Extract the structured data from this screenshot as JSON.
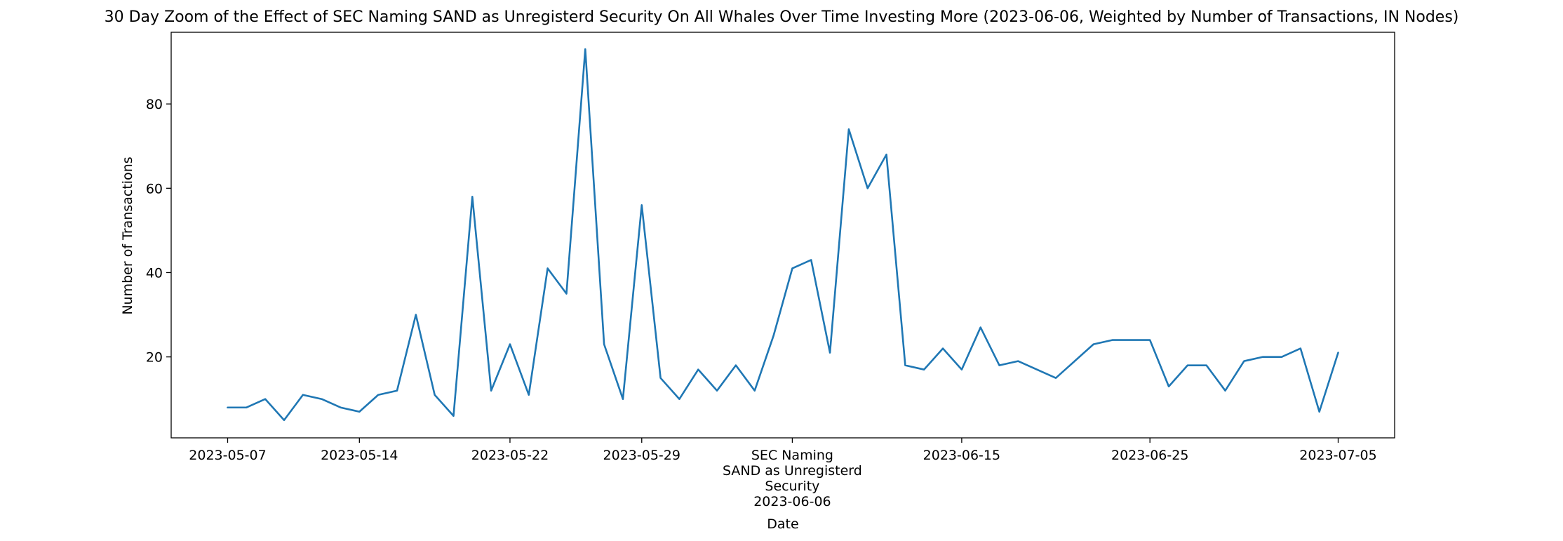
{
  "chart_data": {
    "type": "line",
    "title": "30 Day Zoom of the Effect of SEC Naming SAND as Unregisterd Security On All Whales Over Time Investing More (2023-06-06, Weighted by Number of Transactions, IN Nodes)",
    "xlabel": "Date",
    "ylabel": "Number of Transactions",
    "ylim": [
      0.8,
      97
    ],
    "yticks": [
      20,
      40,
      60,
      80
    ],
    "xlim": [
      "2023-05-04",
      "2023-07-08"
    ],
    "xticks": [
      {
        "date": "2023-05-07",
        "label": "2023-05-07"
      },
      {
        "date": "2023-05-14",
        "label": "2023-05-14"
      },
      {
        "date": "2023-05-22",
        "label": "2023-05-22"
      },
      {
        "date": "2023-05-29",
        "label": "2023-05-29"
      },
      {
        "date": "2023-06-06",
        "label": "SEC Naming\nSAND as Unregisterd\nSecurity\n2023-06-06"
      },
      {
        "date": "2023-06-15",
        "label": "2023-06-15"
      },
      {
        "date": "2023-06-25",
        "label": "2023-06-25"
      },
      {
        "date": "2023-07-05",
        "label": "2023-07-05"
      }
    ],
    "grid": false,
    "color": "#1f77b4",
    "series": [
      {
        "points": [
          [
            "2023-05-07",
            8
          ],
          [
            "2023-05-08",
            8
          ],
          [
            "2023-05-09",
            10
          ],
          [
            "2023-05-10",
            5
          ],
          [
            "2023-05-11",
            11
          ],
          [
            "2023-05-12",
            10
          ],
          [
            "2023-05-13",
            8
          ],
          [
            "2023-05-14",
            7
          ],
          [
            "2023-05-15",
            11
          ],
          [
            "2023-05-16",
            12
          ],
          [
            "2023-05-17",
            30
          ],
          [
            "2023-05-18",
            11
          ],
          [
            "2023-05-19",
            6
          ],
          [
            "2023-05-20",
            58
          ],
          [
            "2023-05-21",
            12
          ],
          [
            "2023-05-22",
            23
          ],
          [
            "2023-05-23",
            11
          ],
          [
            "2023-05-24",
            41
          ],
          [
            "2023-05-25",
            35
          ],
          [
            "2023-05-26",
            93
          ],
          [
            "2023-05-27",
            23
          ],
          [
            "2023-05-28",
            10
          ],
          [
            "2023-05-29",
            56
          ],
          [
            "2023-05-30",
            15
          ],
          [
            "2023-05-31",
            10
          ],
          [
            "2023-06-01",
            17
          ],
          [
            "2023-06-02",
            12
          ],
          [
            "2023-06-03",
            18
          ],
          [
            "2023-06-04",
            12
          ],
          [
            "2023-06-05",
            25
          ],
          [
            "2023-06-06",
            41
          ],
          [
            "2023-06-07",
            43
          ],
          [
            "2023-06-08",
            21
          ],
          [
            "2023-06-09",
            74
          ],
          [
            "2023-06-10",
            60
          ],
          [
            "2023-06-11",
            68
          ],
          [
            "2023-06-12",
            18
          ],
          [
            "2023-06-13",
            17
          ],
          [
            "2023-06-14",
            22
          ],
          [
            "2023-06-15",
            17
          ],
          [
            "2023-06-16",
            27
          ],
          [
            "2023-06-17",
            18
          ],
          [
            "2023-06-18",
            19
          ],
          [
            "2023-06-20",
            15
          ],
          [
            "2023-06-22",
            23
          ],
          [
            "2023-06-23",
            24
          ],
          [
            "2023-06-25",
            24
          ],
          [
            "2023-06-26",
            13
          ],
          [
            "2023-06-27",
            18
          ],
          [
            "2023-06-28",
            18
          ],
          [
            "2023-06-29",
            12
          ],
          [
            "2023-06-30",
            19
          ],
          [
            "2023-07-01",
            20
          ],
          [
            "2023-07-02",
            20
          ],
          [
            "2023-07-03",
            22
          ],
          [
            "2023-07-04",
            7
          ],
          [
            "2023-07-05",
            21
          ]
        ]
      }
    ]
  }
}
